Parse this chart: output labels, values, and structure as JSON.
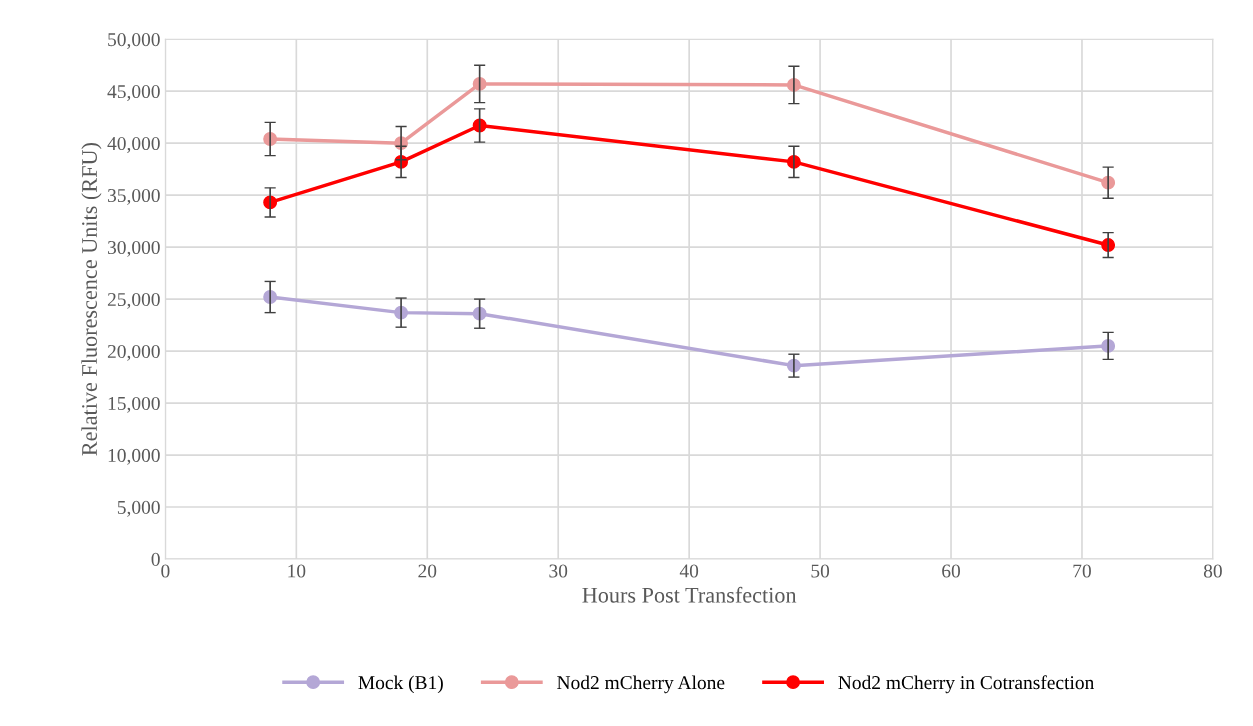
{
  "chart_data": {
    "type": "line",
    "xlabel": "Hours Post Transfection",
    "ylabel": "Relative Fluorescence Units (RFU)",
    "x": [
      8,
      18,
      24,
      48,
      72
    ],
    "series": [
      {
        "name": "Mock (B1)",
        "color": "#b4a7d6",
        "values": [
          25200,
          23700,
          23600,
          18600,
          20500
        ],
        "errors": [
          1500,
          1400,
          1400,
          1100,
          1300
        ]
      },
      {
        "name": "Nod2 mCherry Alone",
        "color": "#ea9999",
        "values": [
          40400,
          40000,
          45700,
          45600,
          36200
        ],
        "errors": [
          1600,
          1600,
          1800,
          1800,
          1500
        ]
      },
      {
        "name": "Nod2 mCherry in Cotransfection",
        "color": "#ff0000",
        "values": [
          34300,
          38200,
          41700,
          38200,
          30200
        ],
        "errors": [
          1400,
          1500,
          1600,
          1500,
          1200
        ]
      }
    ],
    "xlim": [
      0,
      80
    ],
    "xticks": [
      0,
      10,
      20,
      30,
      40,
      50,
      60,
      70,
      80
    ],
    "ylim": [
      0,
      50000
    ],
    "yticks": [
      {
        "value": 0,
        "label": "0"
      },
      {
        "value": 5000,
        "label": "5,000"
      },
      {
        "value": 10000,
        "label": "10,000"
      },
      {
        "value": 15000,
        "label": "15,000"
      },
      {
        "value": 20000,
        "label": "20,000"
      },
      {
        "value": 25000,
        "label": "25,000"
      },
      {
        "value": 30000,
        "label": "30,000"
      },
      {
        "value": 35000,
        "label": "35,000"
      },
      {
        "value": 40000,
        "label": "40,000"
      },
      {
        "value": 45000,
        "label": "45,000"
      },
      {
        "value": 50000,
        "label": "50,000"
      }
    ],
    "grid": true,
    "legend": "bottom",
    "marker": "circle",
    "line_style": "solid"
  }
}
